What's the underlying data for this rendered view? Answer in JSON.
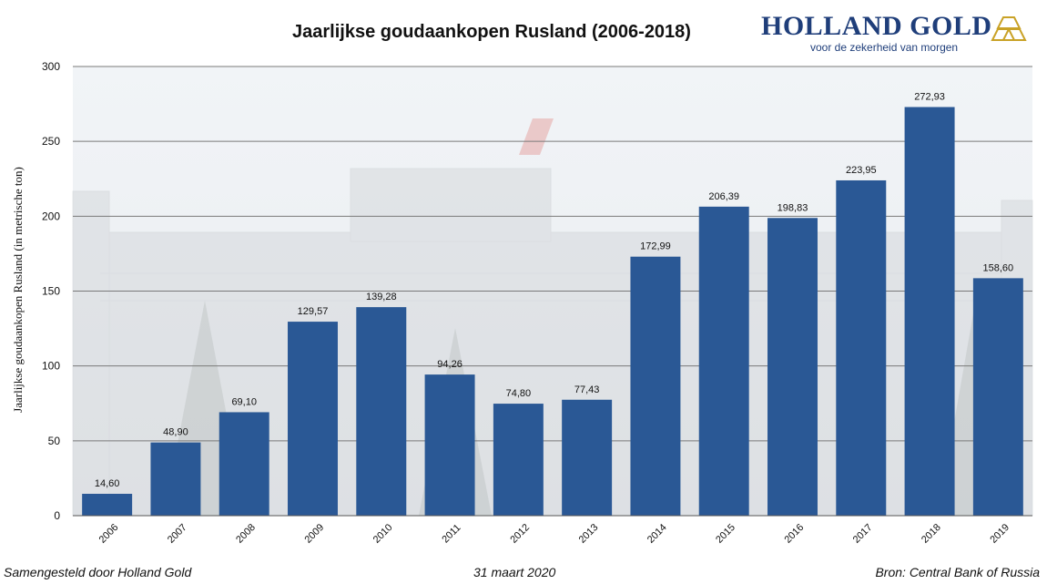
{
  "header": {
    "title": "Jaarlijkse goudaankopen Rusland (2006-2018)",
    "brand_name": "HOLLAND GOLD",
    "brand_tagline": "voor de zekerheid van morgen",
    "brand_icon": "gold-bars-icon"
  },
  "footer": {
    "left": "Samengesteld door Holland Gold",
    "middle": "31 maart 2020",
    "right": "Bron: Central Bank of Russia"
  },
  "colors": {
    "bar": "#2a5895",
    "brand": "#1f3e7a",
    "gold": "#c9a227"
  },
  "chart_data": {
    "type": "bar",
    "title": "Jaarlijkse goudaankopen Rusland (2006-2018)",
    "xlabel": "",
    "ylabel": "Jaarlijkse goudaankopen Rusland (in metrische ton)",
    "categories": [
      "2006",
      "2007",
      "2008",
      "2009",
      "2010",
      "2011",
      "2012",
      "2013",
      "2014",
      "2015",
      "2016",
      "2017",
      "2018",
      "2019"
    ],
    "values": [
      14.6,
      48.9,
      69.1,
      129.57,
      139.28,
      94.26,
      74.8,
      77.43,
      172.99,
      206.39,
      198.83,
      223.95,
      272.93,
      158.6
    ],
    "value_labels": [
      "14,60",
      "48,90",
      "69,10",
      "129,57",
      "139,28",
      "94,26",
      "74,80",
      "77,43",
      "172,99",
      "206,39",
      "198,83",
      "223,95",
      "272,93",
      "158,60"
    ],
    "ylim": [
      0,
      300
    ],
    "yticks": [
      0,
      50,
      100,
      150,
      200,
      250,
      300
    ],
    "grid": true,
    "background": "photo of Bank of Russia building"
  }
}
